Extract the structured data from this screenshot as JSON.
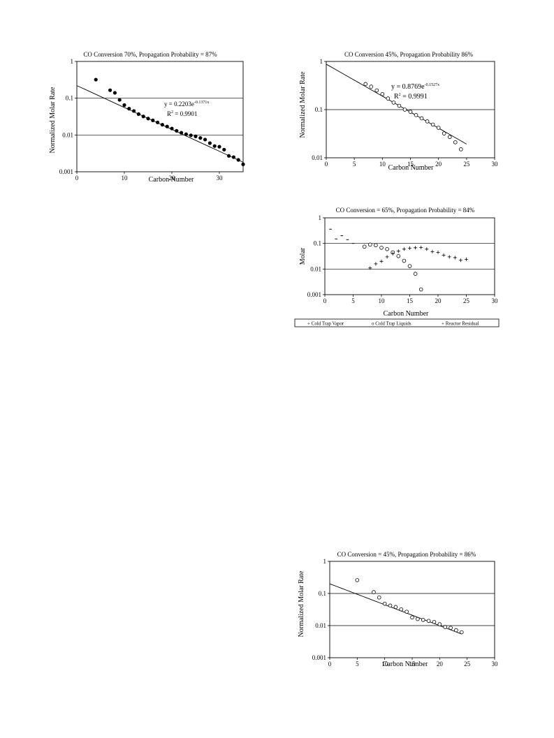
{
  "chart_data": [
    {
      "type": "scatter",
      "title": "CO Conversion 70%, Propagation Probability = 87%",
      "xlabel": "Carbon Number",
      "ylabel": "Normalized Molar Rate",
      "xlim": [
        0,
        35
      ],
      "ylim": [
        0.001,
        1
      ],
      "yscale": "log",
      "x_ticks": [
        "0",
        "10",
        "20",
        "30"
      ],
      "y_ticks": [
        "0.001",
        "0.01",
        "0.1",
        "1"
      ],
      "grid": "horizontal at 0.01 and 0.1",
      "marker": "filled-circle",
      "series": [
        {
          "x": [
            4,
            7,
            8,
            9,
            10,
            11,
            12,
            13,
            14,
            15,
            16,
            17,
            18,
            19,
            20,
            21,
            22,
            23,
            24,
            25,
            26,
            27,
            28,
            29,
            30,
            31,
            32,
            33,
            34,
            35
          ],
          "y": [
            0.32,
            0.165,
            0.14,
            0.09,
            0.065,
            0.052,
            0.045,
            0.037,
            0.032,
            0.028,
            0.025,
            0.022,
            0.019,
            0.017,
            0.015,
            0.013,
            0.0115,
            0.0105,
            0.0098,
            0.0092,
            0.0083,
            0.0075,
            0.006,
            0.005,
            0.0048,
            0.004,
            0.0027,
            0.0025,
            0.0021,
            0.0016
          ]
        }
      ],
      "trendline": {
        "a": 0.2203,
        "b": -0.1371,
        "x_range": [
          0,
          35
        ]
      },
      "equation_label": {
        "prefix": "y = 0.2203e",
        "exponent": "-0.1371x"
      },
      "r2_label": {
        "base": "R",
        "sup": "2",
        "value": " = 0.9901"
      }
    },
    {
      "type": "scatter",
      "title": "CO Conversion 45%, Propagation Probability 86%",
      "xlabel": "Carbon Number",
      "ylabel": "Normalized Molar Rate",
      "xlim": [
        0,
        30
      ],
      "ylim": [
        0.01,
        1
      ],
      "yscale": "log",
      "x_ticks": [
        "0",
        "5",
        "10",
        "15",
        "20",
        "25",
        "30"
      ],
      "y_ticks": [
        "0.01",
        "0.1",
        "1"
      ],
      "grid": "horizontal at 0.1",
      "marker": "open-circle",
      "series": [
        {
          "x": [
            7,
            8,
            9,
            10,
            11,
            12,
            13,
            14,
            15,
            16,
            17,
            18,
            19,
            20,
            21,
            22,
            23,
            24
          ],
          "y": [
            0.34,
            0.3,
            0.25,
            0.21,
            0.17,
            0.14,
            0.12,
            0.1,
            0.09,
            0.077,
            0.066,
            0.057,
            0.049,
            0.042,
            0.032,
            0.027,
            0.021,
            0.015
          ]
        }
      ],
      "trendline": {
        "a": 0.8769,
        "b": -0.1527,
        "x_range": [
          0,
          25
        ]
      },
      "equation_label": {
        "prefix": "y = 0.8769e",
        "exponent": "-0.1527x"
      },
      "r2_label": {
        "base": "R",
        "sup": "2",
        "value": " = 0.9991"
      }
    },
    {
      "type": "scatter",
      "title": "CO Conversion = 65%, Propagation Probability = 84%",
      "xlabel": "Carbon Number",
      "ylabel": "Molar",
      "xlim": [
        0,
        30
      ],
      "ylim": [
        0.001,
        1
      ],
      "yscale": "log",
      "x_ticks": [
        "0",
        "5",
        "10",
        "15",
        "20",
        "25",
        "30"
      ],
      "y_ticks": [
        "0.001",
        "0.01",
        "0.1",
        "1"
      ],
      "grid": "horizontal at 0.01 and 0.1",
      "legend": "bottom",
      "series": [
        {
          "name": "Cold Trap Vapor",
          "marker": "dash",
          "x": [
            1,
            2,
            3,
            4,
            5
          ],
          "y": [
            0.36,
            0.15,
            0.2,
            0.14,
            0.1
          ]
        },
        {
          "name": "Cold Trap Liquids",
          "marker": "open-circle",
          "x": [
            7,
            8,
            9,
            10,
            11,
            12,
            13,
            14,
            15,
            16,
            17
          ],
          "y": [
            0.075,
            0.09,
            0.085,
            0.068,
            0.06,
            0.045,
            0.032,
            0.021,
            0.013,
            0.0065,
            0.0016
          ]
        },
        {
          "name": "Reactor Residual",
          "marker": "plus",
          "x": [
            8,
            9,
            10,
            11,
            12,
            13,
            14,
            15,
            16,
            17,
            18,
            19,
            20,
            21,
            22,
            23,
            24,
            25
          ],
          "y": [
            0.011,
            0.016,
            0.02,
            0.03,
            0.04,
            0.05,
            0.06,
            0.065,
            0.068,
            0.07,
            0.06,
            0.048,
            0.045,
            0.035,
            0.03,
            0.028,
            0.022,
            0.024
          ]
        }
      ],
      "legend_labels": [
        "+ Cold Trap Vapor",
        "o Cold Trap Liquids",
        "+ Reactor Residual"
      ]
    },
    {
      "type": "scatter",
      "title": "CO Conversion = 45%, Propagation Probability = 86%",
      "xlabel": "Carbon Number",
      "ylabel": "Normalized Molar Rate",
      "xlim": [
        0,
        30
      ],
      "ylim": [
        0.001,
        1
      ],
      "yscale": "log",
      "x_ticks": [
        "0",
        "5",
        "10",
        "15",
        "20",
        "25",
        "30"
      ],
      "y_ticks": [
        "0.001",
        "0.01",
        "0.1",
        "1"
      ],
      "grid": "horizontal at 0.01 and 0.1",
      "marker": "open-circle",
      "series": [
        {
          "x": [
            5,
            8,
            9,
            10,
            11,
            12,
            13,
            14,
            15,
            16,
            17,
            18,
            19,
            20,
            21,
            22,
            23,
            24
          ],
          "y": [
            0.26,
            0.11,
            0.075,
            0.048,
            0.042,
            0.038,
            0.032,
            0.027,
            0.018,
            0.016,
            0.015,
            0.014,
            0.013,
            0.011,
            0.009,
            0.0085,
            0.0072,
            0.0062
          ]
        }
      ],
      "trendline": {
        "a": 0.2,
        "b": -0.15,
        "x_range": [
          0,
          24
        ]
      }
    }
  ]
}
